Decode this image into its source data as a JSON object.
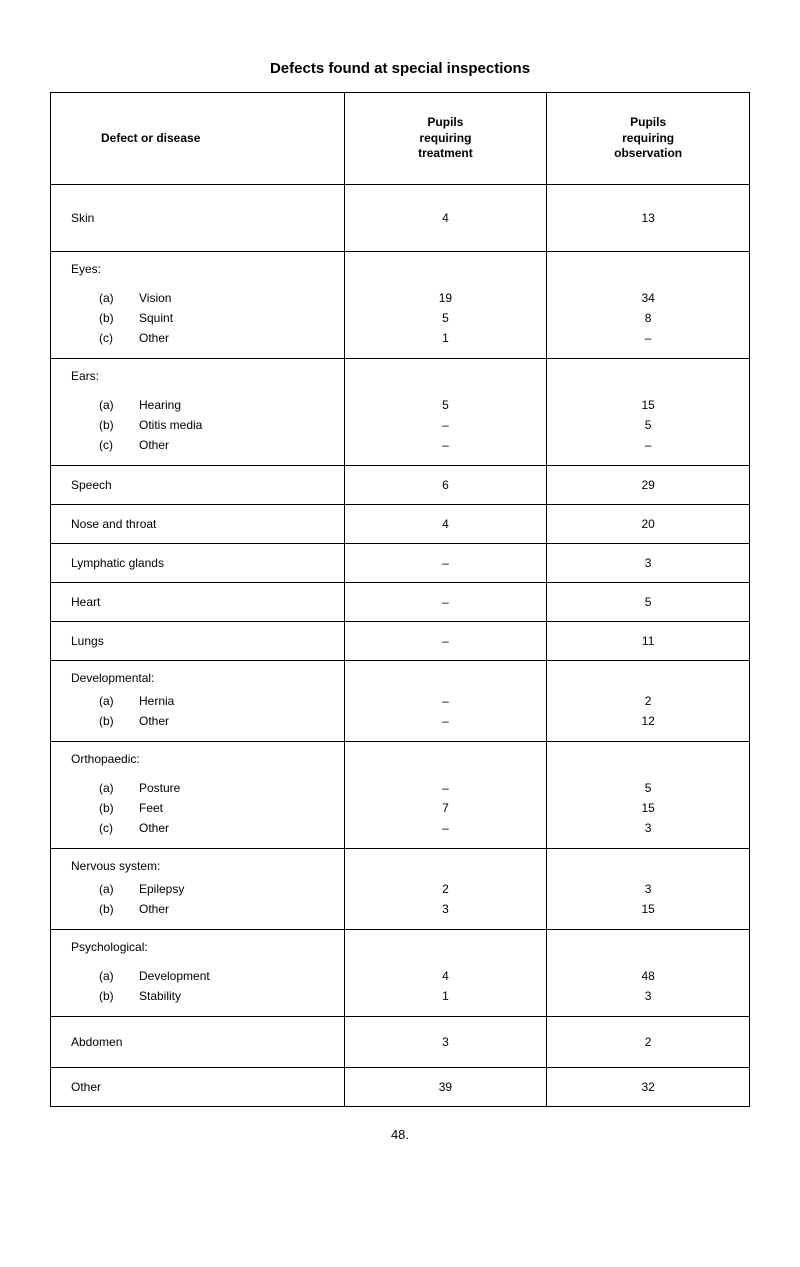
{
  "title": "Defects found at special inspections",
  "columns": {
    "defect": "Defect or disease",
    "treatment": "Pupils\nrequiring\ntreatment",
    "observation": "Pupils\nrequiring\nobservation"
  },
  "rows": {
    "skin": {
      "label": "Skin",
      "treatment": "4",
      "observation": "13"
    },
    "eyes": {
      "label": "Eyes:",
      "sub": [
        {
          "key": "(a)",
          "name": "Vision",
          "treatment": "19",
          "observation": "34"
        },
        {
          "key": "(b)",
          "name": "Squint",
          "treatment": "5",
          "observation": "8"
        },
        {
          "key": "(c)",
          "name": "Other",
          "treatment": "1",
          "observation": "–"
        }
      ]
    },
    "ears": {
      "label": "Ears:",
      "sub": [
        {
          "key": "(a)",
          "name": "Hearing",
          "treatment": "5",
          "observation": "15"
        },
        {
          "key": "(b)",
          "name": "Otitis media",
          "treatment": "–",
          "observation": "5"
        },
        {
          "key": "(c)",
          "name": "Other",
          "treatment": "–",
          "observation": "–"
        }
      ]
    },
    "speech": {
      "label": "Speech",
      "treatment": "6",
      "observation": "29"
    },
    "nose": {
      "label": "Nose and throat",
      "treatment": "4",
      "observation": "20"
    },
    "lymph": {
      "label": "Lymphatic glands",
      "treatment": "–",
      "observation": "3"
    },
    "heart": {
      "label": "Heart",
      "treatment": "–",
      "observation": "5"
    },
    "lungs": {
      "label": "Lungs",
      "treatment": "–",
      "observation": "11"
    },
    "dev": {
      "label": "Developmental:",
      "sub": [
        {
          "key": "(a)",
          "name": "Hernia",
          "treatment": "–",
          "observation": "2"
        },
        {
          "key": "(b)",
          "name": "Other",
          "treatment": "–",
          "observation": "12"
        }
      ]
    },
    "ortho": {
      "label": "Orthopaedic:",
      "sub": [
        {
          "key": "(a)",
          "name": "Posture",
          "treatment": "–",
          "observation": "5"
        },
        {
          "key": "(b)",
          "name": "Feet",
          "treatment": "7",
          "observation": "15"
        },
        {
          "key": "(c)",
          "name": "Other",
          "treatment": "–",
          "observation": "3"
        }
      ]
    },
    "nervous": {
      "label": "Nervous system:",
      "sub": [
        {
          "key": "(a)",
          "name": "Epilepsy",
          "treatment": "2",
          "observation": "3"
        },
        {
          "key": "(b)",
          "name": "Other",
          "treatment": "3",
          "observation": "15"
        }
      ]
    },
    "psych": {
      "label": "Psychological:",
      "sub": [
        {
          "key": "(a)",
          "name": "Development",
          "treatment": "4",
          "observation": "48"
        },
        {
          "key": "(b)",
          "name": "Stability",
          "treatment": "1",
          "observation": "3"
        }
      ]
    },
    "abdomen": {
      "label": "Abdomen",
      "treatment": "3",
      "observation": "2"
    },
    "other": {
      "label": "Other",
      "treatment": "39",
      "observation": "32"
    }
  },
  "page_number": "48."
}
